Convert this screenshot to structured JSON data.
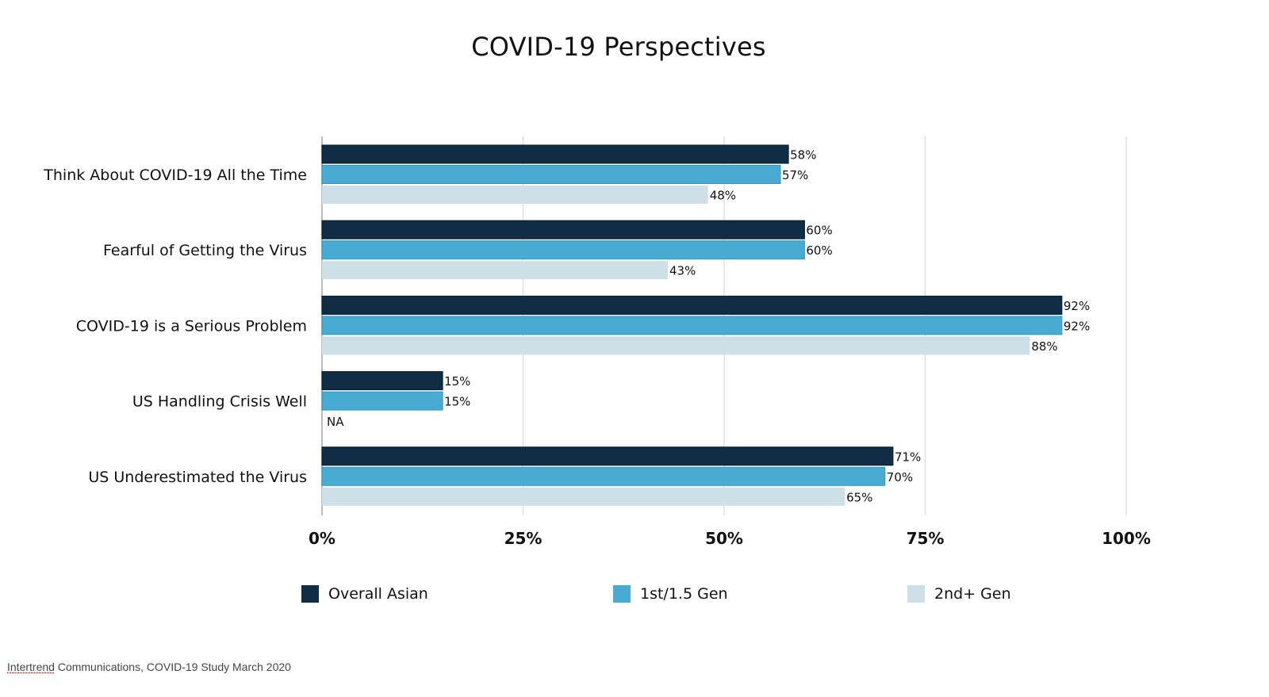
{
  "chart_data": {
    "type": "bar",
    "orientation": "horizontal",
    "title": "COVID-19 Perspectives",
    "xlabel": "",
    "ylabel": "",
    "xlim": [
      0,
      100
    ],
    "x_ticks": [
      "0%",
      "25%",
      "50%",
      "75%",
      "100%"
    ],
    "x_tick_values": [
      0,
      25,
      50,
      75,
      100
    ],
    "grid": true,
    "legend_position": "bottom",
    "categories": [
      "Think About COVID-19 All the Time",
      "Fearful of Getting the Virus",
      "COVID-19 is a Serious Problem",
      "US Handling Crisis Well",
      "US Underestimated the Virus"
    ],
    "series": [
      {
        "name": "Overall Asian",
        "color": "#0f2d45",
        "values": [
          58,
          60,
          92,
          15,
          71
        ],
        "labels": [
          "58%",
          "60%",
          "92%",
          "15%",
          "71%"
        ]
      },
      {
        "name": "1st/1.5 Gen",
        "color": "#4aabd2",
        "values": [
          57,
          60,
          92,
          15,
          70
        ],
        "labels": [
          "57%",
          "60%",
          "92%",
          "15%",
          "70%"
        ]
      },
      {
        "name": "2nd+ Gen",
        "color": "#cddfe7",
        "values": [
          48,
          43,
          88,
          null,
          65
        ],
        "labels": [
          "48%",
          "43%",
          "88%",
          "NA",
          "65%"
        ]
      }
    ]
  },
  "source": {
    "brand": "Intertrend",
    "rest": " Communications, COVID-19 Study March 2020"
  }
}
